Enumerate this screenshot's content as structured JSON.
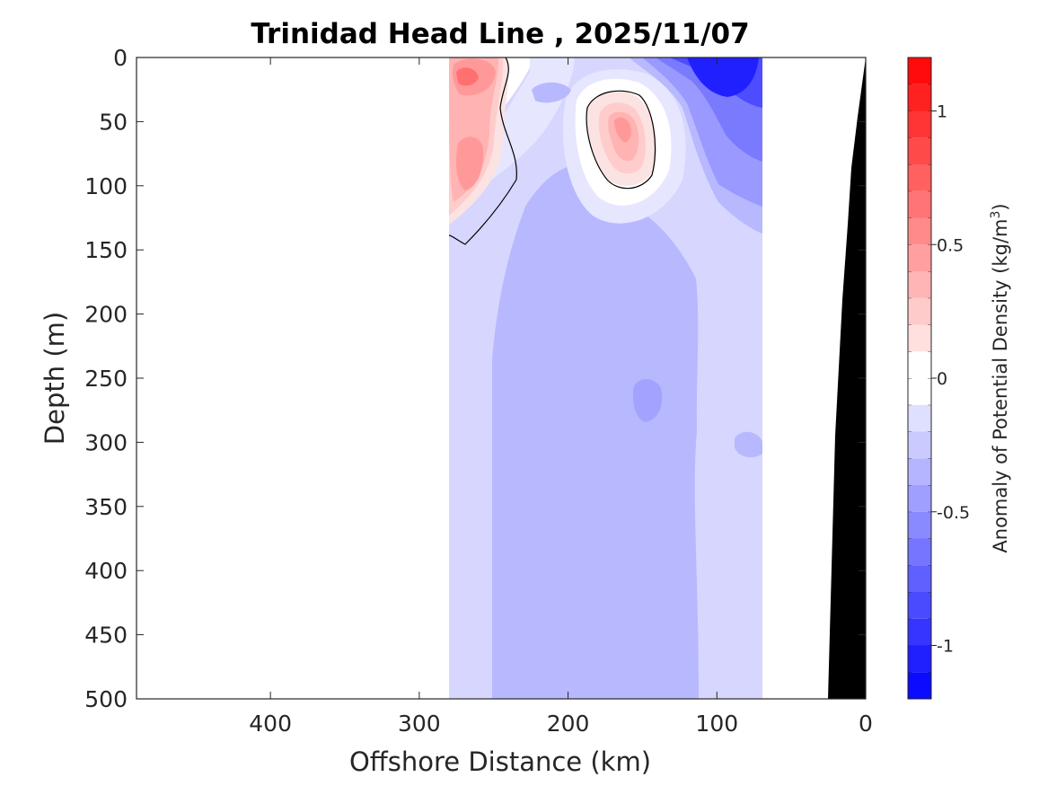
{
  "chart_data": {
    "type": "filled-contour section",
    "title": "Trinidad Head Line , 2025/11/07",
    "xlabel": "Offshore Distance (km)",
    "ylabel": "Depth (m)",
    "xlim": [
      490,
      0
    ],
    "ylim": [
      0,
      500
    ],
    "x_reversed": true,
    "y_reversed": true,
    "xticks": [
      400,
      300,
      200,
      100,
      0
    ],
    "xtick_labels": [
      "400",
      "300",
      "200",
      "100",
      "0"
    ],
    "yticks": [
      0,
      50,
      100,
      150,
      200,
      250,
      300,
      350,
      400,
      450,
      500
    ],
    "ytick_labels": [
      "0",
      "50",
      "100",
      "150",
      "200",
      "250",
      "300",
      "350",
      "400",
      "450",
      "500"
    ],
    "data_extent_km": [
      280,
      70
    ],
    "zero_contour": true,
    "colorbar": {
      "label_main": "Anomaly of Potential Density (kg/m",
      "label_sup": "3",
      "label_close": ")",
      "clim": [
        -1.2,
        1.2
      ],
      "step": 0.1,
      "ticks": [
        1,
        0.5,
        0,
        -0.5,
        -1
      ],
      "tick_labels": [
        "1",
        "0.5",
        "0",
        "-0.5",
        "-1"
      ]
    },
    "features": [
      {
        "name": "positive anomaly, nearshore-west core",
        "x_km": [
          280,
          240
        ],
        "depth_m": [
          0,
          145
        ],
        "peak": 0.8
      },
      {
        "name": "positive anomaly, eddy core",
        "x_km": [
          190,
          145
        ],
        "depth_m": [
          25,
          105
        ],
        "peak": 0.6
      },
      {
        "name": "negative anomaly, surface",
        "x_km": [
          150,
          70
        ],
        "depth_m": [
          0,
          120
        ],
        "peak": -1.1
      },
      {
        "name": "deep water",
        "x_km": [
          280,
          70
        ],
        "depth_m": [
          150,
          500
        ],
        "range": [
          -0.4,
          -0.1
        ]
      }
    ],
    "bathymetry": [
      [
        0,
        0
      ],
      [
        3,
        30
      ],
      [
        10,
        90
      ],
      [
        13,
        150
      ],
      [
        17,
        220
      ],
      [
        22,
        300
      ],
      [
        25,
        500
      ]
    ]
  }
}
